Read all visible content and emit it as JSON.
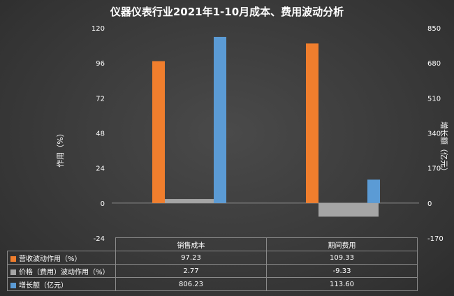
{
  "chart_data": {
    "type": "bar",
    "title": "仪器仪表行业2021年1-10月成本、费用波动分析",
    "categories": [
      "销售成本",
      "期间费用"
    ],
    "ylabel": "作用（%）",
    "y2label": "增长额（亿元）",
    "ylim": [
      -24,
      120
    ],
    "y2lim": [
      -170,
      850
    ],
    "yticks": [
      "-24",
      "0",
      "24",
      "48",
      "72",
      "96",
      "120"
    ],
    "y2ticks": [
      "-170",
      "0",
      "170",
      "340",
      "510",
      "680",
      "850"
    ],
    "grid": false,
    "legend": "data-table",
    "series": [
      {
        "name": "营收波动作用（%）",
        "axis": "left",
        "color": "#f07e2d",
        "values": [
          97.23,
          109.33
        ],
        "labels": [
          "97.23",
          "109.33"
        ]
      },
      {
        "name": "价格（费用）波动作用（%）",
        "axis": "left",
        "color": "#a5a5a5",
        "values": [
          2.77,
          -9.33
        ],
        "labels": [
          "2.77",
          "-9.33"
        ]
      },
      {
        "name": "增长额（亿元）",
        "axis": "right",
        "color": "#5b9bd5",
        "values": [
          806.23,
          113.6
        ],
        "labels": [
          "806.23",
          "113.60"
        ]
      }
    ]
  }
}
